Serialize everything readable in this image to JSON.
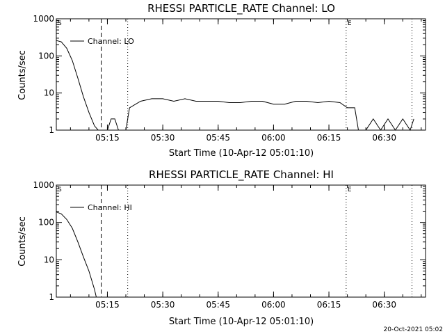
{
  "chart_data": [
    {
      "type": "line",
      "title": "RHESSI PARTICLE_RATE Channel: LO",
      "xlabel": "Start Time (10-Apr-12 05:01:10)",
      "ylabel": "Counts/sec",
      "y_scale": "log",
      "ylim": [
        1,
        1000
      ],
      "xlim": [
        "05:01:10",
        "06:41:10"
      ],
      "x_ticks": [
        "05:15",
        "05:30",
        "05:45",
        "06:00",
        "06:15",
        "06:30"
      ],
      "y_ticks": [
        "1",
        "10",
        "100",
        "1000"
      ],
      "grid": false,
      "legend": "top-left",
      "series": [
        {
          "name": "Channel: LO",
          "x": [
            "05:01:10",
            "05:02:30",
            "05:04:00",
            "05:05:30",
            "05:07:00",
            "05:08:30",
            "05:10:00",
            "05:11:30",
            "05:12:30",
            "05:13:00",
            "05:14:00",
            "05:15:00",
            "05:16:00",
            "05:17:00",
            "05:18:00",
            "05:19:00",
            "05:20:00",
            "05:21:00",
            "05:24:00",
            "05:27:00",
            "05:30:00",
            "05:33:00",
            "05:36:00",
            "05:39:00",
            "05:42:00",
            "05:45:00",
            "05:48:00",
            "05:51:00",
            "05:54:00",
            "05:57:00",
            "06:00:00",
            "06:03:00",
            "06:06:00",
            "06:09:00",
            "06:12:00",
            "06:15:00",
            "06:18:00",
            "06:20:00",
            "06:22:00",
            "06:23:00",
            "06:24:00",
            "06:25:00",
            "06:27:00",
            "06:29:00",
            "06:31:00",
            "06:33:00",
            "06:35:00",
            "06:37:00",
            "06:38:00"
          ],
          "y": [
            260,
            240,
            160,
            75,
            25,
            8,
            3,
            1.3,
            1,
            1,
            1,
            1,
            2,
            2,
            1,
            1,
            1,
            4,
            6,
            7,
            7,
            6,
            7,
            6,
            6,
            6,
            5.5,
            5.5,
            6,
            6,
            5,
            5,
            6,
            6,
            5.5,
            6,
            5.5,
            4,
            4,
            1,
            1,
            1,
            2,
            1,
            2,
            1,
            2,
            1,
            2
          ]
        }
      ],
      "markers": [
        {
          "label": "S",
          "time": "05:01:10",
          "style": "dotted"
        },
        {
          "label": "",
          "time": "05:13:20",
          "style": "dashed"
        },
        {
          "label": "",
          "time": "05:20:30",
          "style": "dotted"
        },
        {
          "label": "E",
          "time": "06:19:40",
          "style": "dotted"
        },
        {
          "label": "",
          "time": "06:37:30",
          "style": "dotted"
        }
      ]
    },
    {
      "type": "line",
      "title": "RHESSI PARTICLE_RATE Channel: HI",
      "xlabel": "Start Time (10-Apr-12 05:01:10)",
      "ylabel": "Counts/sec",
      "y_scale": "log",
      "ylim": [
        1,
        1000
      ],
      "xlim": [
        "05:01:10",
        "06:41:10"
      ],
      "x_ticks": [
        "05:15",
        "05:30",
        "05:45",
        "06:00",
        "06:15",
        "06:30"
      ],
      "y_ticks": [
        "1",
        "10",
        "100",
        "1000"
      ],
      "grid": false,
      "legend": "top-left",
      "series": [
        {
          "name": "Channel: HI",
          "x": [
            "05:01:10",
            "05:02:30",
            "05:04:00",
            "05:05:30",
            "05:07:00",
            "05:08:30",
            "05:10:00",
            "05:11:30",
            "05:12:00"
          ],
          "y": [
            190,
            170,
            120,
            70,
            30,
            12,
            5,
            1.6,
            1
          ]
        }
      ],
      "markers": [
        {
          "label": "S",
          "time": "05:01:10",
          "style": "dotted"
        },
        {
          "label": "",
          "time": "05:13:20",
          "style": "dashed"
        },
        {
          "label": "",
          "time": "05:20:30",
          "style": "dotted"
        },
        {
          "label": "E",
          "time": "06:19:40",
          "style": "dotted"
        },
        {
          "label": "",
          "time": "06:37:30",
          "style": "dotted"
        }
      ]
    }
  ],
  "footer": {
    "timestamp": "20-Oct-2021 05:02"
  }
}
